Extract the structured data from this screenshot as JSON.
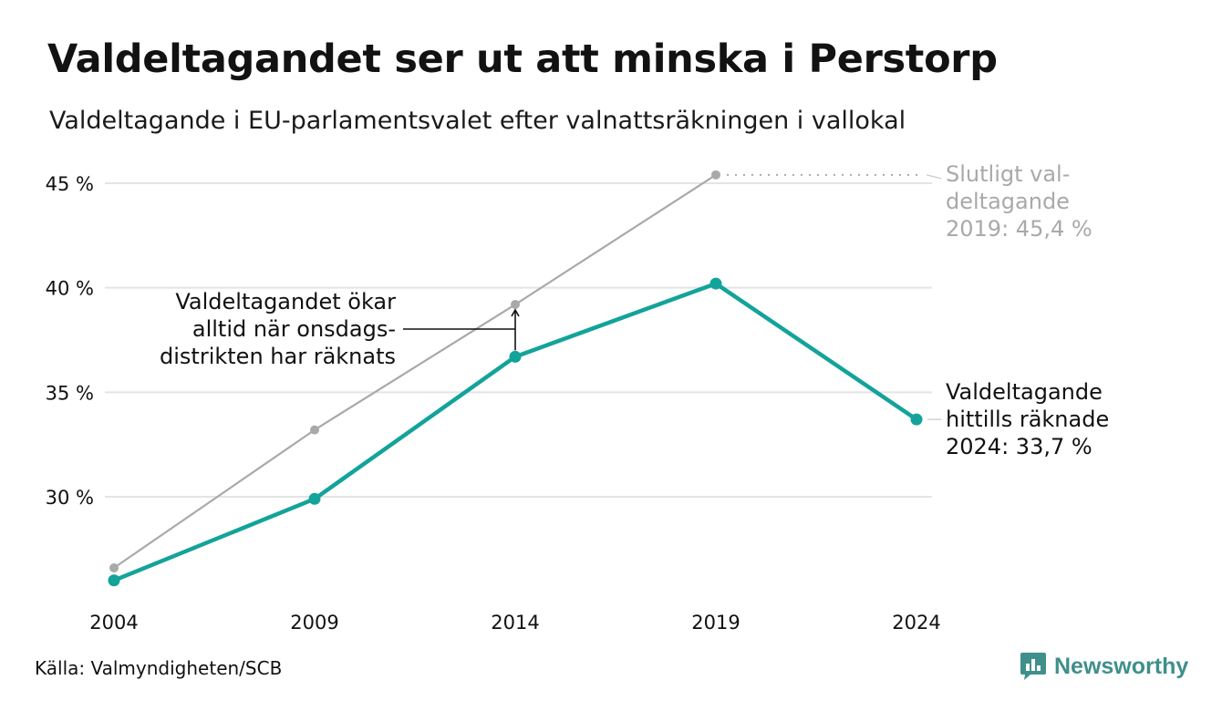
{
  "title": "Valdeltagandet ser ut att minska i Perstorp",
  "subtitle": "Valdeltagande i EU-parlamentsvalet efter valnattsräkningen i vallokal",
  "source": "Källa: Valmyndigheten/SCB",
  "brand": {
    "name": "Newsworthy",
    "icon": "newsworthy-logo-icon",
    "color": "#3f8f8b"
  },
  "chart_data": {
    "type": "line",
    "x": [
      2004,
      2009,
      2014,
      2019,
      2024
    ],
    "x_tick_labels": [
      "2004",
      "2009",
      "2014",
      "2019",
      "2024"
    ],
    "y_ticks": [
      30,
      35,
      40,
      45
    ],
    "y_tick_labels": [
      "30 %",
      "35 %",
      "40 %",
      "45 %"
    ],
    "ylim": [
      26.0,
      46.0
    ],
    "grid": true,
    "series": [
      {
        "key": "final",
        "color": "#a9a9a9",
        "values": [
          26.6,
          33.2,
          39.2,
          45.4,
          null
        ]
      },
      {
        "key": "election_night",
        "color": "#13a39a",
        "values": [
          26.0,
          29.9,
          36.7,
          40.2,
          33.7
        ]
      }
    ],
    "annotations": {
      "final_2019": [
        "Slutligt val-",
        "deltagande",
        "2019: 45,4 %"
      ],
      "counted_2024": [
        "Valdeltagande",
        "hittills räknade",
        "2024: 33,7 %"
      ],
      "wednesday": [
        "Valdeltagandet ökar",
        "alltid när onsdags-",
        "distrikten har räknats"
      ]
    }
  }
}
